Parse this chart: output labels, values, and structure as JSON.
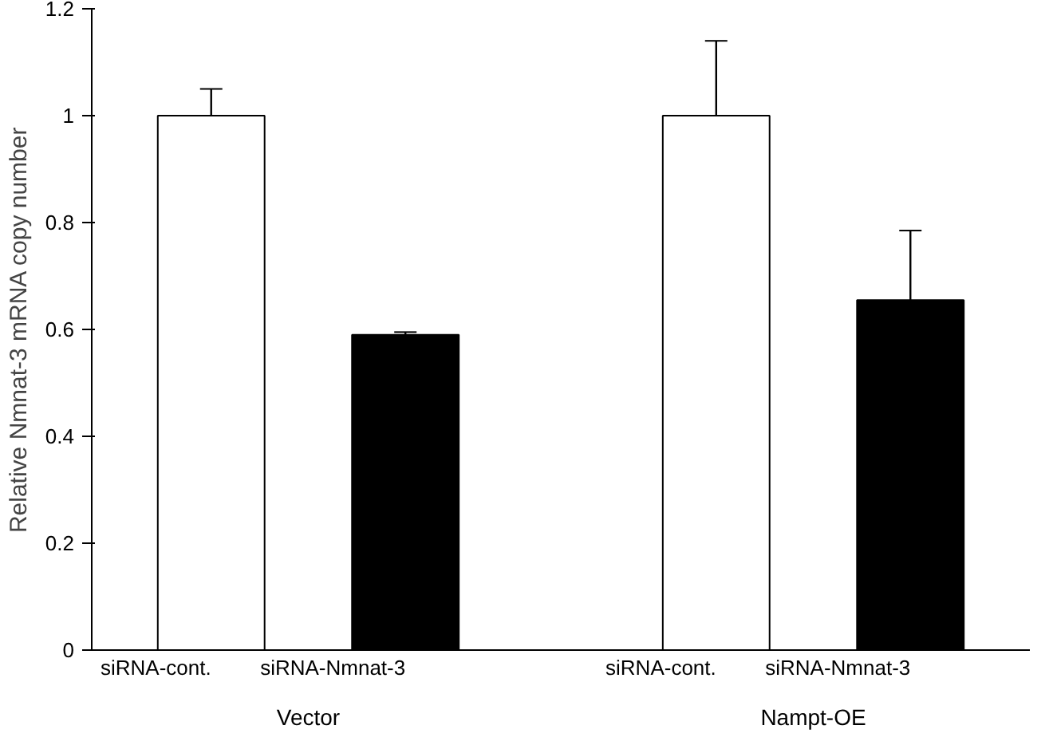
{
  "chart_data": {
    "type": "bar",
    "ylabel": "Relative Nmnat-3 mRNA copy number",
    "categories": [
      "siRNA-cont.",
      "siRNA-Nmnat-3",
      "siRNA-cont.",
      "siRNA-Nmnat-3"
    ],
    "values": [
      1.0,
      0.59,
      1.0,
      0.655
    ],
    "colors": [
      "#ffffff",
      "#000000",
      "#ffffff",
      "#000000"
    ],
    "errors": [
      [
        1.0,
        1.05
      ],
      [
        0.59,
        0.595
      ],
      [
        1.0,
        1.14
      ],
      [
        0.655,
        0.785
      ]
    ],
    "annotations": [
      "Vector",
      "Nampt-OE"
    ],
    "ylim": [
      0,
      1.2
    ],
    "yticks": [
      0,
      0.2,
      0.4,
      0.6,
      0.8,
      1,
      1.2
    ],
    "grid": false
  }
}
